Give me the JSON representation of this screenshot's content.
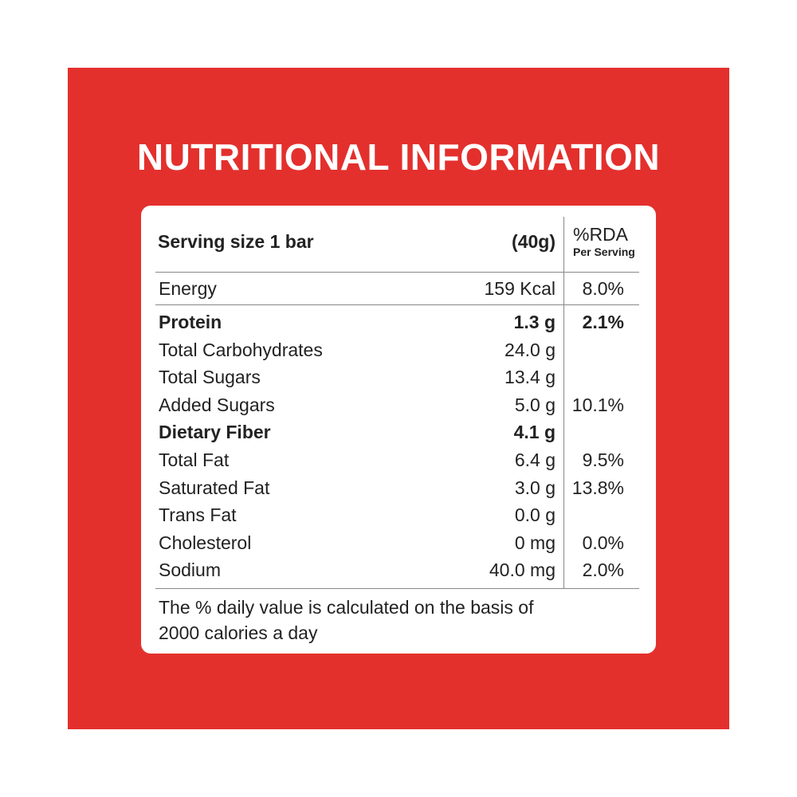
{
  "title": "NUTRITIONAL INFORMATION",
  "table": {
    "header": {
      "serving": "Serving size 1 bar",
      "amount": "(40g)",
      "rda": "%RDA",
      "rda_note": "Per Serving"
    },
    "rows": [
      {
        "name": "Energy",
        "amount": "159 Kcal",
        "rda": "8.0%"
      },
      {
        "name": "Protein",
        "amount": "1.3 g",
        "rda": "2.1%",
        "bold": true
      },
      {
        "name": "Total Carbohydrates",
        "amount": "24.0 g"
      },
      {
        "name": "Total Sugars",
        "amount": "13.4 g"
      },
      {
        "name": "Added Sugars",
        "amount": "5.0 g",
        "rda": "10.1%"
      },
      {
        "name": "Dietary Fiber",
        "amount": "4.1 g",
        "bold": true
      },
      {
        "name": "Total Fat",
        "amount": "6.4 g",
        "rda": "9.5%"
      },
      {
        "name": "Saturated Fat",
        "amount": "3.0 g",
        "rda": "13.8%"
      },
      {
        "name": "Trans Fat",
        "amount": "0.0 g"
      },
      {
        "name": "Cholesterol",
        "amount": "0 mg",
        "rda": "0.0%"
      },
      {
        "name": "Sodium",
        "amount": "40.0 mg",
        "rda": "2.0%"
      }
    ],
    "footnote": "The % daily value is calculated on the basis of 2000 calories a day"
  }
}
